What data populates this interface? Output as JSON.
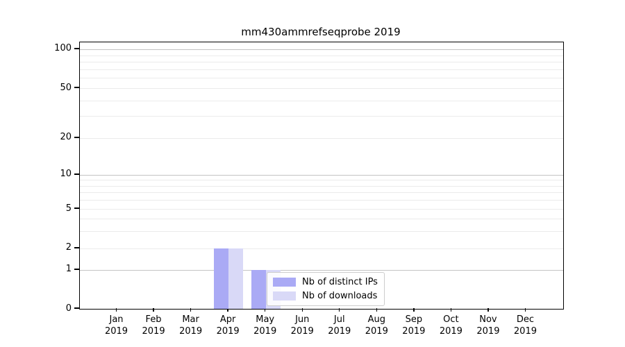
{
  "chart_data": {
    "type": "bar",
    "title": "mm430ammrefseqprobe 2019",
    "categories": [
      {
        "month": "Jan",
        "year": "2019"
      },
      {
        "month": "Feb",
        "year": "2019"
      },
      {
        "month": "Mar",
        "year": "2019"
      },
      {
        "month": "Apr",
        "year": "2019"
      },
      {
        "month": "May",
        "year": "2019"
      },
      {
        "month": "Jun",
        "year": "2019"
      },
      {
        "month": "Jul",
        "year": "2019"
      },
      {
        "month": "Aug",
        "year": "2019"
      },
      {
        "month": "Sep",
        "year": "2019"
      },
      {
        "month": "Oct",
        "year": "2019"
      },
      {
        "month": "Nov",
        "year": "2019"
      },
      {
        "month": "Dec",
        "year": "2019"
      }
    ],
    "series": [
      {
        "name": "Nb of distinct IPs",
        "color": "#aaaaf5",
        "values": [
          0,
          0,
          0,
          2,
          1,
          0,
          0,
          0,
          0,
          0,
          0,
          0
        ]
      },
      {
        "name": "Nb of downloads",
        "color": "#d9d9f7",
        "values": [
          0,
          0,
          0,
          2,
          1,
          0,
          0,
          0,
          0,
          0,
          0,
          0
        ]
      }
    ],
    "xlabel": "",
    "ylabel": "",
    "y_axis": {
      "scale": "symlog",
      "ticks": [
        0,
        1,
        2,
        5,
        10,
        20,
        50,
        100
      ],
      "tick_fractions": [
        {
          "value": 0,
          "frac": 1.0
        },
        {
          "value": 1,
          "frac": 0.854
        },
        {
          "value": 2,
          "frac": 0.773
        },
        {
          "value": 5,
          "frac": 0.625
        },
        {
          "value": 10,
          "frac": 0.497
        },
        {
          "value": 20,
          "frac": 0.359
        },
        {
          "value": 50,
          "frac": 0.172
        },
        {
          "value": 100,
          "frac": 0.026
        }
      ],
      "major_gridlines": [
        1,
        10,
        100
      ],
      "minor_gridlines": [
        2,
        3,
        4,
        5,
        6,
        7,
        8,
        9,
        20,
        30,
        40,
        50,
        60,
        70,
        80,
        90
      ]
    },
    "grid": "on",
    "legend_position": "lower-center-inside"
  },
  "colors": {
    "major_grid": "#c3c3c3",
    "minor_grid": "#ebebeb",
    "axis": "#000000",
    "background": "#ffffff"
  }
}
